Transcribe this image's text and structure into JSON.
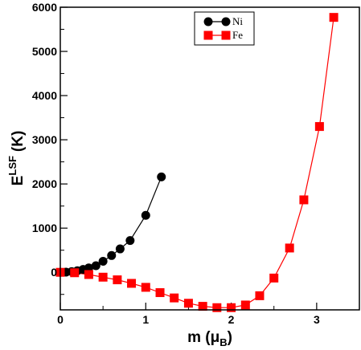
{
  "chart_data": {
    "type": "line",
    "title": "",
    "xlabel": {
      "main": "m",
      "unit_open": "(",
      "unit_symbol": "μ",
      "unit_sub": "B",
      "unit_close": ")"
    },
    "ylabel": {
      "main": "E",
      "sup": "LSF",
      "unit": "(K)"
    },
    "xlim": [
      0,
      3.5
    ],
    "ylim": [
      -850,
      6000
    ],
    "x_ticks": [
      0,
      1,
      2,
      3
    ],
    "y_ticks": [
      0,
      1000,
      2000,
      3000,
      4000,
      5000,
      6000
    ],
    "x_tick_labels": [
      "0",
      "1",
      "2",
      "3"
    ],
    "y_tick_labels": [
      "0",
      "1000",
      "2000",
      "3000",
      "4000",
      "5000",
      "6000"
    ],
    "legend": {
      "position": "top-center"
    },
    "series": [
      {
        "name": "Ni",
        "color": "#000000",
        "marker": "circle",
        "x": [
          0.0,
          0.067,
          0.133,
          0.2,
          0.267,
          0.333,
          0.417,
          0.5,
          0.6,
          0.7,
          0.817,
          1.0,
          1.183
        ],
        "y": [
          0,
          5,
          15,
          35,
          65,
          100,
          150,
          250,
          380,
          530,
          720,
          1290,
          2160
        ]
      },
      {
        "name": "Fe",
        "color": "#ff0000",
        "marker": "square",
        "x": [
          0.0,
          0.167,
          0.333,
          0.5,
          0.667,
          0.833,
          1.0,
          1.167,
          1.333,
          1.5,
          1.667,
          1.833,
          2.0,
          2.167,
          2.333,
          2.5,
          2.683,
          2.85,
          3.033,
          3.2
        ],
        "y": [
          0,
          -10,
          -50,
          -110,
          -170,
          -250,
          -340,
          -460,
          -580,
          -700,
          -770,
          -800,
          -800,
          -740,
          -530,
          -130,
          550,
          1640,
          3300,
          5770
        ]
      }
    ]
  }
}
